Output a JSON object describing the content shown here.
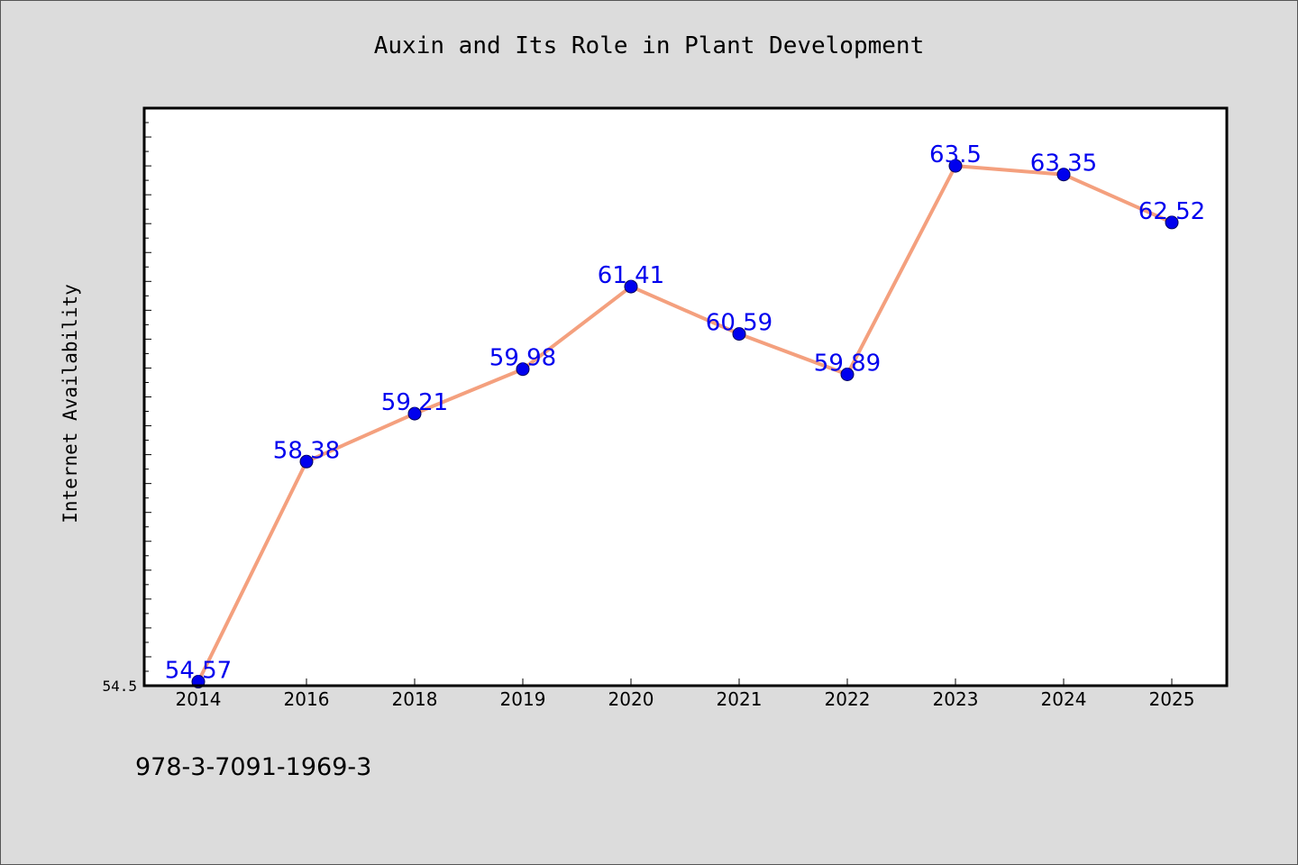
{
  "chart_data": {
    "type": "line",
    "title": "Auxin and Its Role in Plant Development",
    "ylabel": "Internet Availability",
    "xlabel": "",
    "categories": [
      "2014",
      "2016",
      "2018",
      "2019",
      "2020",
      "2021",
      "2022",
      "2023",
      "2024",
      "2025"
    ],
    "values": [
      54.57,
      58.38,
      59.21,
      59.98,
      61.41,
      60.59,
      59.89,
      63.5,
      63.35,
      62.52
    ],
    "data_labels": [
      "54.57",
      "58.38",
      "59.21",
      "59.98",
      "61.41",
      "60.59",
      "59.89",
      "63.5",
      "63.35",
      "62.52"
    ],
    "ylim": [
      54.5,
      64.5
    ],
    "y_tick_labels": [
      "54.5"
    ],
    "grid": false,
    "legend": "none",
    "colors": {
      "line": "#f4a07e",
      "marker": "#0000ee",
      "data_label": "#0000ee",
      "plot_background": "#ffffff",
      "page_background": "#dcdcdc"
    }
  },
  "footer": {
    "code": "978-3-7091-1969-3"
  }
}
